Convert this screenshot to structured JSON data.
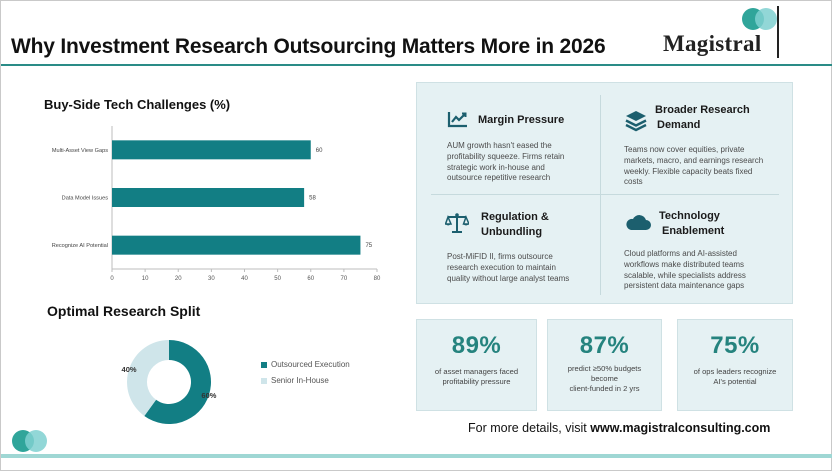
{
  "header": {
    "title": "Why Investment Research Outsourcing Matters More in 2026",
    "logo_text": "Magistral"
  },
  "bar_chart": {
    "title": "Buy-Side Tech Challenges (%)"
  },
  "donut": {
    "title": "Optimal Research Split"
  },
  "chart_data": [
    {
      "type": "bar",
      "orientation": "horizontal",
      "title": "Buy-Side Tech Challenges (%)",
      "categories": [
        "Multi-Asset View Gaps",
        "Data Model Issues",
        "Recognize AI Potential"
      ],
      "values": [
        60,
        58,
        75
      ],
      "data_labels": [
        "60",
        "58",
        "75"
      ],
      "xlim": [
        0,
        80
      ],
      "xticks": [
        "0",
        "10",
        "20",
        "30",
        "40",
        "50",
        "60",
        "70",
        "80"
      ],
      "color": "#127e84",
      "grid": false
    },
    {
      "type": "pie",
      "donut": true,
      "title": "Optimal Research Split",
      "categories": [
        "Outsourced Execution",
        "Senior In-House"
      ],
      "values": [
        60,
        40
      ],
      "data_labels": [
        "60%",
        "40%"
      ],
      "colors": [
        "#127e84",
        "#cfe5ea"
      ],
      "legend_position": "right"
    }
  ],
  "features": [
    {
      "title": "Margin Pressure",
      "body": [
        "AUM growth hasn't eased the",
        "profitability squeeze. Firms retain",
        "strategic work in-house and",
        "outsource repetitive research"
      ],
      "icon": "trend-chart-icon"
    },
    {
      "title_lines": [
        "Broader Research",
        "Demand"
      ],
      "body": [
        "Teams now cover equities, private",
        "markets, macro, and earnings research",
        "weekly. Flexible capacity beats fixed",
        "costs"
      ],
      "icon": "layers-stack-icon"
    },
    {
      "title_lines": [
        "Regulation &",
        "Unbundling"
      ],
      "body": [
        "Post-MiFID II, firms outsource",
        "research execution to maintain",
        "quality without large analyst teams"
      ],
      "icon": "scale-balance-icon"
    },
    {
      "title_lines": [
        "Technology",
        "Enablement"
      ],
      "body": [
        "Cloud platforms and AI-assisted",
        "workflows make distributed teams",
        "scalable, while specialists address",
        "persistent data maintenance gaps"
      ],
      "icon": "cloud-icon"
    }
  ],
  "stats": [
    {
      "value": "89%",
      "text": [
        "of asset managers faced",
        "profitability pressure"
      ]
    },
    {
      "value": "87%",
      "text": [
        "predict ≥50% budgets",
        "become",
        "client-funded in 2 yrs"
      ]
    },
    {
      "value": "75%",
      "text": [
        "of ops leaders recognize",
        "AI's potential"
      ]
    }
  ],
  "footer": {
    "prefix": "For more details, visit ",
    "url": "www.magistralconsulting.com"
  },
  "colors": {
    "accent": "#127e84",
    "accent_light": "#cfe5ea",
    "panel_bg": "#e5f1f3",
    "stat_value": "#25837e",
    "logo_teal": "#1a9b8f",
    "logo_light": "#7fd0d0"
  }
}
